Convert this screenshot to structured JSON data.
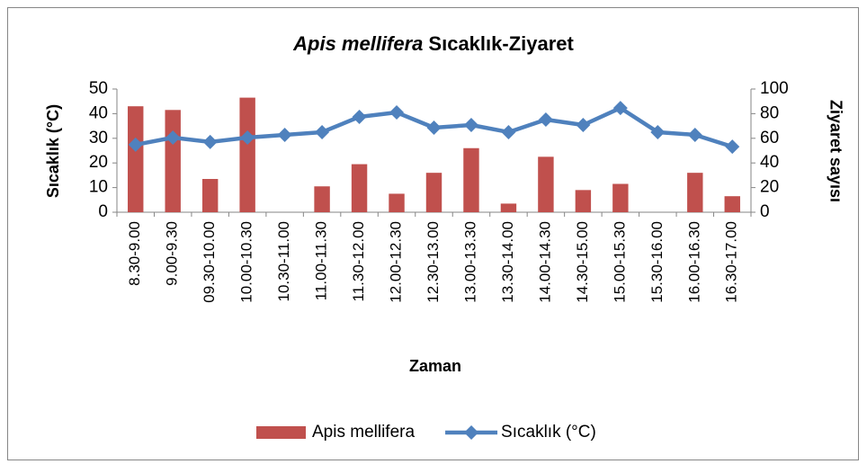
{
  "chart_data": {
    "type": "bar-line",
    "title": {
      "italic": "Apis mellifera",
      "rest": "Sıcaklık-Ziyaret"
    },
    "x_label": "Zaman",
    "y_label": "Sıcaklık (°C)",
    "y2_label": "Ziyaret sayısı",
    "categories": [
      "8.30-9.00",
      "9.00-9.30",
      "09.30-10.00",
      "10.00-10.30",
      "10.30-11.00",
      "11.00-11.30",
      "11.30-12.00",
      "12.00-12.30",
      "12.30-13.00",
      "13.00-13.30",
      "13.30-14.00",
      "14.00-14.30",
      "14.30-15.00",
      "15.00-15.30",
      "15.30-16.00",
      "16.00-16.30",
      "16.30-17.00"
    ],
    "series": [
      {
        "name": "Apis mellifera",
        "type": "bar",
        "axis": "y2",
        "color": "#c0504d",
        "values": [
          86,
          83,
          27,
          93,
          0,
          21,
          39,
          15,
          32,
          52,
          7,
          45,
          18,
          23,
          0,
          32,
          13
        ]
      },
      {
        "name": "Sıcaklık (°C)",
        "type": "line",
        "color": "#4f81bd",
        "values": [
          27.4,
          30.3,
          28.5,
          30.3,
          31.4,
          32.5,
          38.7,
          40.5,
          34.3,
          35.4,
          32.5,
          37.6,
          35.4,
          42.3,
          32.5,
          31.4,
          26.6
        ]
      }
    ],
    "ylim": [
      0,
      50
    ],
    "yticks": [
      0,
      10,
      20,
      30,
      40,
      50
    ],
    "y2lim": [
      0,
      100
    ],
    "y2ticks": [
      0,
      20,
      40,
      60,
      80,
      100
    ],
    "legend": "bottom"
  }
}
